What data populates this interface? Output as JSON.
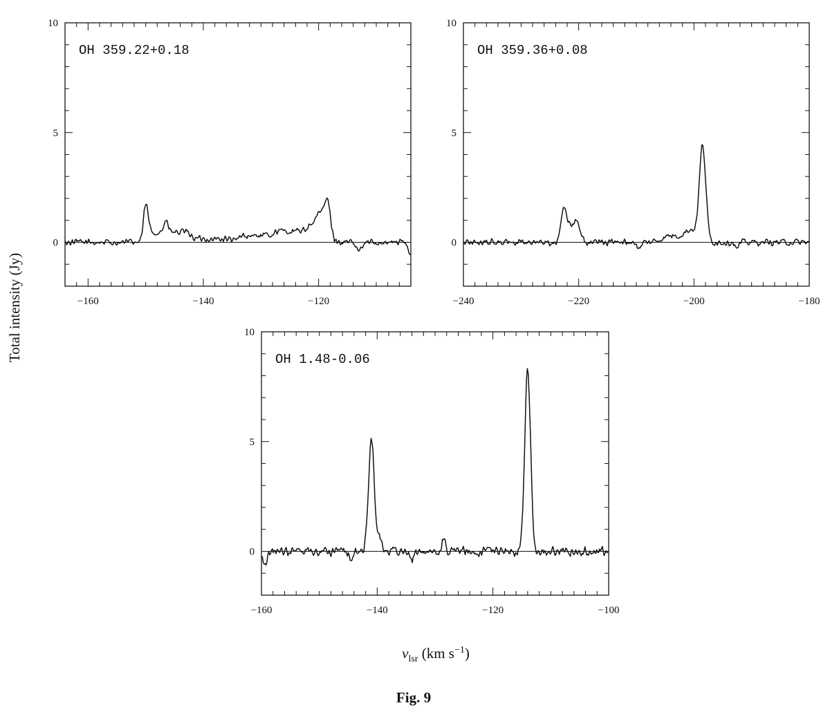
{
  "figure": {
    "caption": "Fig. 9",
    "ylabel": "Total intensity (Jy)",
    "xlabel_main": "v",
    "xlabel_sub": "lsr",
    "xlabel_unit_open": " (km s",
    "xlabel_unit_exp": "−1",
    "xlabel_unit_close": ")"
  },
  "chart_data": [
    {
      "type": "line",
      "label": "OH 359.22+0.18",
      "xlim": [
        -164,
        -104
      ],
      "ylim": [
        -2,
        10
      ],
      "xticks": [
        -160,
        -140,
        -120
      ],
      "yticks": [
        0,
        5,
        10
      ],
      "baseline": 0,
      "grid": false,
      "noise": 0.12,
      "features": [
        {
          "type": "gauss",
          "x0": -150,
          "w": 0.4,
          "h": 1.5
        },
        {
          "type": "plateau",
          "x1": -150,
          "x2": -142,
          "h": 0.45
        },
        {
          "type": "gauss",
          "x0": -146.5,
          "w": 0.4,
          "h": 0.5
        },
        {
          "type": "plateau",
          "x1": -142,
          "x2": -135,
          "h": 0.15
        },
        {
          "type": "plateau",
          "x1": -134,
          "x2": -128,
          "h": 0.3
        },
        {
          "type": "plateau",
          "x1": -128,
          "x2": -122,
          "h": 0.5
        },
        {
          "type": "plateau",
          "x1": -122,
          "x2": -118,
          "h": 0.85
        },
        {
          "type": "gauss",
          "x0": -118.5,
          "w": 0.6,
          "h": 1.2
        },
        {
          "type": "gauss",
          "x0": -120,
          "w": 0.5,
          "h": 0.4
        },
        {
          "type": "gauss",
          "x0": -113,
          "w": 0.5,
          "h": -0.4
        },
        {
          "type": "gauss",
          "x0": -104.2,
          "w": 0.35,
          "h": -0.5
        }
      ]
    },
    {
      "type": "line",
      "label": "OH 359.36+0.08",
      "xlim": [
        -240,
        -180
      ],
      "ylim": [
        -2,
        10
      ],
      "xticks": [
        -240,
        -220,
        -200,
        -180
      ],
      "yticks": [
        0,
        5,
        10
      ],
      "baseline": 0,
      "grid": false,
      "noise": 0.12,
      "features": [
        {
          "type": "plateau",
          "x1": -223.2,
          "x2": -219.5,
          "h": 0.75
        },
        {
          "type": "gauss",
          "x0": -222.5,
          "w": 0.45,
          "h": 0.8
        },
        {
          "type": "gauss",
          "x0": -220.5,
          "w": 0.5,
          "h": 0.15
        },
        {
          "type": "gauss",
          "x0": -198.5,
          "w": 0.55,
          "h": 4.3
        },
        {
          "type": "gauss",
          "x0": -200.5,
          "w": 1.2,
          "h": 0.55
        },
        {
          "type": "gauss",
          "x0": -204,
          "w": 1.5,
          "h": 0.3
        },
        {
          "type": "gauss",
          "x0": -209.5,
          "w": 0.3,
          "h": -0.35
        },
        {
          "type": "gauss",
          "x0": -192.5,
          "w": 0.3,
          "h": -0.3
        }
      ]
    },
    {
      "type": "line",
      "label": "OH 1.48-0.06",
      "xlim": [
        -160,
        -100
      ],
      "ylim": [
        -2,
        10
      ],
      "xticks": [
        -160,
        -140,
        -120,
        -100
      ],
      "yticks": [
        0,
        5,
        10
      ],
      "baseline": 0,
      "grid": false,
      "noise": 0.17,
      "features": [
        {
          "type": "gauss",
          "x0": -141,
          "w": 0.5,
          "h": 5.2
        },
        {
          "type": "gauss",
          "x0": -139.5,
          "w": 0.45,
          "h": 0.5
        },
        {
          "type": "gauss",
          "x0": -114,
          "w": 0.5,
          "h": 8.3
        },
        {
          "type": "gauss",
          "x0": -128.5,
          "w": 0.3,
          "h": 0.55
        },
        {
          "type": "gauss",
          "x0": -144.5,
          "w": 0.4,
          "h": -0.4
        },
        {
          "type": "gauss",
          "x0": -159.5,
          "w": 0.35,
          "h": -0.6
        },
        {
          "type": "gauss",
          "x0": -134,
          "w": 0.3,
          "h": -0.4
        }
      ]
    }
  ]
}
